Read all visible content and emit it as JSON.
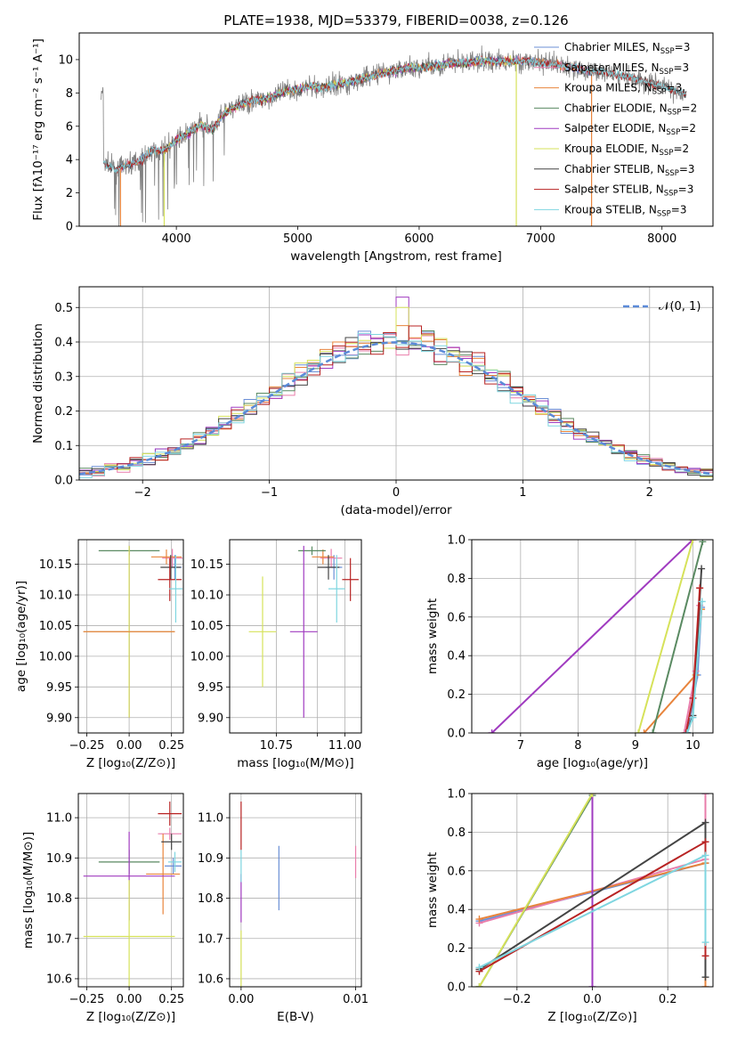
{
  "chart_data": [
    {
      "id": "spectrum",
      "type": "line",
      "title": "PLATE=1938, MJD=53379, FIBERID=0038, z=0.126",
      "xlabel": "wavelength [Angstrom, rest frame]",
      "ylabel": "Flux [fλ10⁻¹⁷ erg cm⁻² s⁻¹ A⁻¹]",
      "xlim": [
        3200,
        8420
      ],
      "ylim": [
        0,
        11.6
      ],
      "xticks": [
        4000,
        5000,
        6000,
        7000,
        8000
      ],
      "yticks": [
        0,
        2,
        4,
        6,
        8,
        10
      ],
      "legend_position": "upper-right",
      "data_continuum": [
        [
          3400,
          3.8
        ],
        [
          3500,
          3.4
        ],
        [
          3600,
          3.7
        ],
        [
          3700,
          3.9
        ],
        [
          3800,
          4.6
        ],
        [
          3900,
          4.5
        ],
        [
          4000,
          5.2
        ],
        [
          4100,
          5.6
        ],
        [
          4200,
          6.1
        ],
        [
          4300,
          5.8
        ],
        [
          4400,
          6.8
        ],
        [
          4500,
          7.2
        ],
        [
          4600,
          7.5
        ],
        [
          4700,
          7.6
        ],
        [
          4800,
          7.8
        ],
        [
          4900,
          8.1
        ],
        [
          5000,
          8.2
        ],
        [
          5100,
          8.4
        ],
        [
          5200,
          8.3
        ],
        [
          5300,
          8.5
        ],
        [
          5400,
          8.6
        ],
        [
          5500,
          8.8
        ],
        [
          5600,
          9.0
        ],
        [
          5700,
          9.2
        ],
        [
          5800,
          9.3
        ],
        [
          5900,
          9.5
        ],
        [
          6000,
          9.5
        ],
        [
          6100,
          9.6
        ],
        [
          6200,
          9.7
        ],
        [
          6300,
          9.8
        ],
        [
          6400,
          9.8
        ],
        [
          6500,
          9.9
        ],
        [
          6600,
          9.9
        ],
        [
          6700,
          9.9
        ],
        [
          6800,
          9.9
        ],
        [
          6900,
          9.9
        ],
        [
          7000,
          9.8
        ],
        [
          7100,
          9.7
        ],
        [
          7200,
          9.6
        ],
        [
          7300,
          9.5
        ],
        [
          7400,
          9.3
        ],
        [
          7500,
          9.3
        ],
        [
          7600,
          9.1
        ],
        [
          7700,
          9.0
        ],
        [
          7800,
          8.8
        ],
        [
          7900,
          8.6
        ],
        [
          8000,
          8.4
        ],
        [
          8100,
          8.2
        ],
        [
          8200,
          7.9
        ]
      ],
      "series": [
        {
          "name": "Chabrier MILES, N_SSP=3",
          "label_main": "Chabrier MILES, N",
          "label_sub": "SSP",
          "label_end": "=3",
          "color": "#6b8fd6",
          "range": [
            3540,
            7420
          ]
        },
        {
          "name": "Salpeter MILES, N_SSP=3",
          "label_main": "Salpeter MILES, N",
          "label_sub": "SSP",
          "label_end": "=3",
          "color": "#e97dab",
          "range": [
            3540,
            7420
          ]
        },
        {
          "name": "Kroupa MILES, N_SSP=3",
          "label_main": "Kroupa MILES, N",
          "label_sub": "SSP",
          "label_end": "=3",
          "color": "#e8843c",
          "range": [
            3540,
            7420
          ]
        },
        {
          "name": "Chabrier ELODIE, N_SSP=2",
          "label_main": "Chabrier ELODIE, N",
          "label_sub": "SSP",
          "label_end": "=2",
          "color": "#5a8a62",
          "range": [
            3900,
            6800
          ]
        },
        {
          "name": "Salpeter ELODIE, N_SSP=2",
          "label_main": "Salpeter ELODIE, N",
          "label_sub": "SSP",
          "label_end": "=2",
          "color": "#a03bc0",
          "range": [
            3900,
            6800
          ]
        },
        {
          "name": "Kroupa ELODIE, N_SSP=2",
          "label_main": "Kroupa ELODIE, N",
          "label_sub": "SSP",
          "label_end": "=2",
          "color": "#d6e25a",
          "range": [
            3900,
            6800
          ]
        },
        {
          "name": "Chabrier STELIB, N_SSP=3",
          "label_main": "Chabrier STELIB, N",
          "label_sub": "SSP",
          "label_end": "=3",
          "color": "#444444",
          "range": [
            3400,
            8200
          ]
        },
        {
          "name": "Salpeter STELIB, N_SSP=3",
          "label_main": "Salpeter STELIB, N",
          "label_sub": "SSP",
          "label_end": "=3",
          "color": "#b82323",
          "range": [
            3400,
            8200
          ]
        },
        {
          "name": "Kroupa STELIB, N_SSP=3",
          "label_main": "Kroupa STELIB, N",
          "label_sub": "SSP",
          "label_end": "=3",
          "color": "#7fd6e0",
          "range": [
            3400,
            8200
          ]
        }
      ],
      "data_color": "#808080"
    },
    {
      "id": "residuals",
      "type": "histogram",
      "xlabel": "(data-model)/error",
      "ylabel": "Normed distribution",
      "xlim": [
        -2.5,
        2.5
      ],
      "ylim": [
        0,
        0.56
      ],
      "xticks": [
        -2,
        -1,
        0,
        1,
        2
      ],
      "yticks": [
        0.0,
        0.1,
        0.2,
        0.3,
        0.4,
        0.5
      ],
      "grid": true,
      "bin_width": 0.1,
      "reference_curve": {
        "name": "N(0, 1)",
        "label": "𝒩(0, 1)",
        "color": "#5b8ad8",
        "style": "dashed"
      },
      "legend_position": "upper-right"
    },
    {
      "id": "age_vs_Z",
      "type": "errorbar",
      "xlabel": "Z [log₁₀(Z/Z⊙)]",
      "ylabel": "age  [log₁₀(age/yr)]",
      "xlim": [
        -0.3,
        0.32
      ],
      "ylim": [
        9.875,
        10.19
      ],
      "xticks": [
        -0.25,
        0.0,
        0.25
      ],
      "xtick_labels": [
        "−0.25",
        "0.00",
        "0.25"
      ],
      "yticks": [
        9.9,
        9.95,
        10.0,
        10.05,
        10.1,
        10.15
      ],
      "ytick_labels": [
        "9.90",
        "9.95",
        "10.00",
        "10.05",
        "10.10",
        "10.15"
      ],
      "grid": true,
      "points": [
        {
          "series": 0,
          "x": 0.27,
          "y": 10.145,
          "xerr": 0.04,
          "yerr": 0.02
        },
        {
          "series": 1,
          "x": 0.255,
          "y": 10.16,
          "xerr": 0.06,
          "yerr": 0.015
        },
        {
          "series": 2,
          "x": 0.22,
          "y": 10.162,
          "xerr": 0.09,
          "yerr": 0.012
        },
        {
          "series": 3,
          "x": 0.0,
          "y": 10.172,
          "xerr": 0.18,
          "yerr": 0.007
        },
        {
          "series": 4,
          "x": 0.0,
          "y": 10.04,
          "xerr": 0.27,
          "yerr": 0.14
        },
        {
          "series": 5,
          "x": 0.0,
          "y": 10.04,
          "xerr": 0.27,
          "yerr": 0.14
        },
        {
          "series": 6,
          "x": 0.245,
          "y": 10.145,
          "xerr": 0.06,
          "yerr": 0.02
        },
        {
          "series": 7,
          "x": 0.24,
          "y": 10.125,
          "xerr": 0.07,
          "yerr": 0.035
        },
        {
          "series": 8,
          "x": 0.275,
          "y": 10.11,
          "xerr": 0.04,
          "yerr": 0.055
        },
        {
          "series": 2,
          "x": 0.0,
          "y": 10.04,
          "xerr": 0.27,
          "yerr": 0.0
        }
      ]
    },
    {
      "id": "age_vs_mass",
      "type": "errorbar",
      "xlabel": "mass [log₁₀(M/M⊙)]",
      "ylabel": "",
      "xlim": [
        10.58,
        11.06
      ],
      "ylim": [
        9.875,
        10.19
      ],
      "xticks": [
        10.75,
        10.9,
        11.0
      ],
      "xtick_labels": [
        "10.75",
        "",
        "11.00"
      ],
      "xtick_labels_visible": [
        "10.75",
        "11.00"
      ],
      "yticks": [
        9.9,
        9.95,
        10.0,
        10.05,
        10.1,
        10.15
      ],
      "ytick_labels": [
        "9.90",
        "9.95",
        "10.00",
        "10.05",
        "10.10",
        "10.15"
      ],
      "grid": true,
      "points": [
        {
          "series": 0,
          "x": 10.96,
          "y": 10.145,
          "xerr": 0.03,
          "yerr": 0.02
        },
        {
          "series": 1,
          "x": 10.95,
          "y": 10.16,
          "xerr": 0.04,
          "yerr": 0.015
        },
        {
          "series": 2,
          "x": 10.92,
          "y": 10.162,
          "xerr": 0.04,
          "yerr": 0.012
        },
        {
          "series": 3,
          "x": 10.88,
          "y": 10.172,
          "xerr": 0.05,
          "yerr": 0.007
        },
        {
          "series": 4,
          "x": 10.85,
          "y": 10.04,
          "xerr": 0.05,
          "yerr": 0.14
        },
        {
          "series": 5,
          "x": 10.7,
          "y": 10.04,
          "xerr": 0.05,
          "yerr": 0.09
        },
        {
          "series": 6,
          "x": 10.94,
          "y": 10.145,
          "xerr": 0.04,
          "yerr": 0.02
        },
        {
          "series": 7,
          "x": 11.02,
          "y": 10.125,
          "xerr": 0.03,
          "yerr": 0.035
        },
        {
          "series": 8,
          "x": 10.97,
          "y": 10.11,
          "xerr": 0.03,
          "yerr": 0.055
        }
      ]
    },
    {
      "id": "cumulative_age",
      "type": "line",
      "xlabel": "age  [log₁₀(age/yr)]",
      "ylabel": "mass weight",
      "xlim": [
        6.15,
        10.35
      ],
      "ylim": [
        0,
        1.0
      ],
      "xticks": [
        7,
        8,
        9,
        10
      ],
      "yticks": [
        0.0,
        0.2,
        0.4,
        0.6,
        0.8,
        1.0
      ],
      "grid": true,
      "series": [
        {
          "series": 0,
          "x": [
            9.9,
            10.08,
            10.15
          ],
          "y": [
            0.0,
            0.3,
            0.65
          ]
        },
        {
          "series": 1,
          "x": [
            9.85,
            10.05,
            10.12
          ],
          "y": [
            0.0,
            0.32,
            0.66
          ]
        },
        {
          "series": 2,
          "x": [
            9.15,
            10.05,
            10.15
          ],
          "y": [
            0.0,
            0.3,
            0.64
          ]
        },
        {
          "series": 3,
          "x": [
            9.3,
            10.17
          ],
          "y": [
            0.0,
            0.99
          ]
        },
        {
          "series": 4,
          "x": [
            6.5,
            10.0
          ],
          "y": [
            0.0,
            1.0
          ]
        },
        {
          "series": 5,
          "x": [
            9.05,
            10.0
          ],
          "y": [
            0.0,
            1.0
          ]
        },
        {
          "series": 6,
          "x": [
            9.9,
            10.0,
            10.15
          ],
          "y": [
            0.0,
            0.09,
            0.85
          ]
        },
        {
          "series": 7,
          "x": [
            9.88,
            10.0,
            10.12
          ],
          "y": [
            0.0,
            0.18,
            0.75
          ]
        },
        {
          "series": 8,
          "x": [
            9.9,
            10.0,
            10.16
          ],
          "y": [
            0.0,
            0.08,
            0.68
          ]
        }
      ]
    },
    {
      "id": "mass_vs_Z",
      "type": "errorbar",
      "xlabel": "Z [log₁₀(Z/Z⊙)]",
      "ylabel": "mass [log₁₀(M/M⊙)]",
      "xlim": [
        -0.3,
        0.32
      ],
      "ylim": [
        10.58,
        11.06
      ],
      "xticks": [
        -0.25,
        0.0,
        0.25
      ],
      "xtick_labels": [
        "−0.25",
        "0.00",
        "0.25"
      ],
      "yticks": [
        10.6,
        10.7,
        10.8,
        10.9,
        11.0
      ],
      "ytick_labels": [
        "10.6",
        "10.7",
        "10.8",
        "10.9",
        "11.0"
      ],
      "grid": true,
      "points": [
        {
          "series": 0,
          "x": 0.26,
          "y": 10.88,
          "xerr": 0.05,
          "yerr": 0.02
        },
        {
          "series": 1,
          "x": 0.24,
          "y": 10.96,
          "xerr": 0.07,
          "yerr": 0.015
        },
        {
          "series": 2,
          "x": 0.2,
          "y": 10.86,
          "xerr": 0.1,
          "yerr": 0.1
        },
        {
          "series": 3,
          "x": 0.0,
          "y": 10.89,
          "xerr": 0.18,
          "yerr": 0.03
        },
        {
          "series": 4,
          "x": 0.0,
          "y": 10.855,
          "xerr": 0.27,
          "yerr": 0.11
        },
        {
          "series": 5,
          "x": 0.0,
          "y": 10.705,
          "xerr": 0.27,
          "yerr": 0.14
        },
        {
          "series": 6,
          "x": 0.25,
          "y": 10.94,
          "xerr": 0.06,
          "yerr": 0.02
        },
        {
          "series": 7,
          "x": 0.24,
          "y": 11.01,
          "xerr": 0.07,
          "yerr": 0.03
        },
        {
          "series": 8,
          "x": 0.27,
          "y": 10.89,
          "xerr": 0.04,
          "yerr": 0.025
        }
      ]
    },
    {
      "id": "mass_vs_EBV",
      "type": "errorbar",
      "xlabel": "E(B-V)",
      "ylabel": "",
      "xlim": [
        -0.001,
        0.0105
      ],
      "ylim": [
        10.58,
        11.06
      ],
      "xticks": [
        0.0,
        0.01
      ],
      "xtick_labels": [
        "0.00",
        "0.01"
      ],
      "yticks": [
        10.6,
        10.7,
        10.8,
        10.9,
        11.0
      ],
      "ytick_labels": [
        "10.6",
        "10.7",
        "10.8",
        "10.9",
        "11.0"
      ],
      "grid": true,
      "points": [
        {
          "series": 7,
          "x": 0.0,
          "y": 10.98,
          "xerr": 0.0,
          "yerr": 0.06
        },
        {
          "series": 4,
          "x": 0.0,
          "y": 10.8,
          "xerr": 0.0,
          "yerr": 0.06
        },
        {
          "series": 5,
          "x": 0.0,
          "y": 10.65,
          "xerr": 0.0,
          "yerr": 0.07
        },
        {
          "series": 8,
          "x": 0.0,
          "y": 10.88,
          "xerr": 0.0,
          "yerr": 0.04
        },
        {
          "series": 0,
          "x": 0.0033,
          "y": 10.85,
          "xerr": 0.0,
          "yerr": 0.08
        },
        {
          "series": 1,
          "x": 0.01,
          "y": 10.89,
          "xerr": 0.0,
          "yerr": 0.04
        }
      ]
    },
    {
      "id": "cumulative_Z",
      "type": "line",
      "xlabel": "Z [log₁₀(Z/Z⊙)]",
      "ylabel": "mass weight",
      "xlim": [
        -0.32,
        0.32
      ],
      "ylim": [
        0,
        1.0
      ],
      "xticks": [
        -0.2,
        0.0,
        0.2
      ],
      "xtick_labels": [
        "−0.2",
        "0.0",
        "0.2"
      ],
      "yticks": [
        0.0,
        0.2,
        0.4,
        0.6,
        0.8,
        1.0
      ],
      "grid": true,
      "series": [
        {
          "series": 0,
          "x": [
            -0.3,
            0.3,
            0.3
          ],
          "y": [
            0.34,
            0.64,
            1.0
          ]
        },
        {
          "series": 1,
          "x": [
            -0.3,
            0.3,
            0.3
          ],
          "y": [
            0.33,
            0.66,
            1.0
          ]
        },
        {
          "series": 2,
          "x": [
            -0.3,
            0.3,
            0.3
          ],
          "y": [
            0.35,
            0.64,
            0.0
          ]
        },
        {
          "series": 3,
          "x": [
            -0.3,
            0.0
          ],
          "y": [
            0.0,
            0.99
          ]
        },
        {
          "series": 4,
          "x": [
            0.0,
            0.0
          ],
          "y": [
            0.0,
            1.0
          ]
        },
        {
          "series": 5,
          "x": [
            -0.3,
            0.0
          ],
          "y": [
            0.0,
            1.0
          ]
        },
        {
          "series": 6,
          "x": [
            -0.3,
            0.3,
            0.3
          ],
          "y": [
            0.09,
            0.85,
            0.05
          ]
        },
        {
          "series": 7,
          "x": [
            -0.3,
            0.3,
            0.3
          ],
          "y": [
            0.08,
            0.75,
            0.16
          ]
        },
        {
          "series": 8,
          "x": [
            -0.3,
            0.3,
            0.3
          ],
          "y": [
            0.1,
            0.68,
            0.23
          ]
        }
      ]
    }
  ]
}
